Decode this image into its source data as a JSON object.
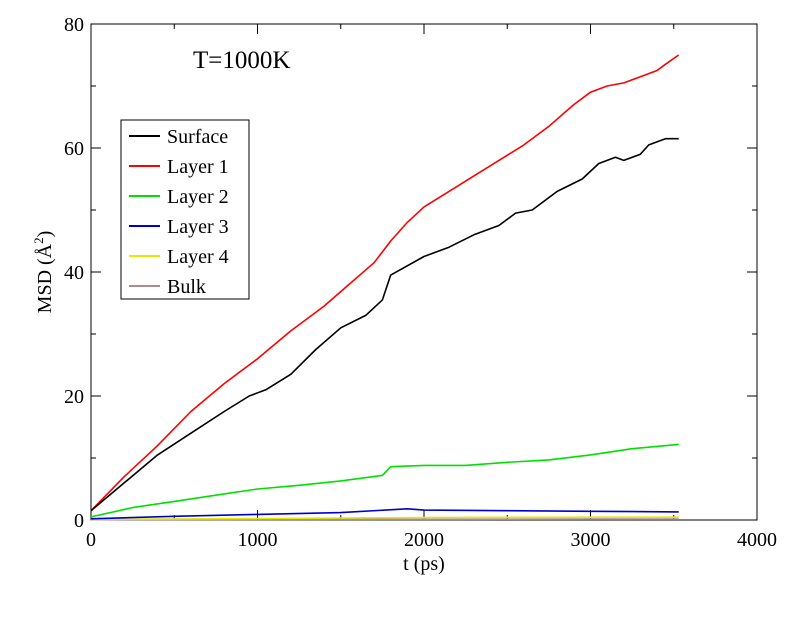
{
  "chart_data": {
    "type": "line",
    "annotation": "T=1000K",
    "xlabel": "t (ps)",
    "ylabel_base": "MSD (",
    "ylabel_unit": "Å",
    "ylabel_sup": "2",
    "ylabel_close": ")",
    "xlim": [
      0,
      4000
    ],
    "ylim": [
      0,
      80
    ],
    "xticks": [
      "0",
      "1000",
      "2000",
      "3000",
      "4000"
    ],
    "yticks": [
      "0",
      "20",
      "40",
      "60",
      "80"
    ],
    "xtick_values": [
      0,
      1000,
      2000,
      3000,
      4000
    ],
    "ytick_values": [
      0,
      20,
      40,
      60,
      80
    ],
    "grid": false,
    "legend_position": "upper-left",
    "series": [
      {
        "name": "Surface",
        "color": "#000000",
        "x": [
          0,
          200,
          400,
          600,
          800,
          950,
          1050,
          1200,
          1350,
          1500,
          1650,
          1750,
          1800,
          1900,
          2000,
          2150,
          2300,
          2450,
          2550,
          2650,
          2800,
          2950,
          3050,
          3150,
          3200,
          3300,
          3350,
          3450,
          3530
        ],
        "y": [
          1.5,
          6,
          10.5,
          14,
          17.5,
          20,
          21,
          23.5,
          27.5,
          31,
          33,
          35.5,
          39.5,
          41,
          42.5,
          44,
          46,
          47.5,
          49.5,
          50,
          53,
          55,
          57.5,
          58.5,
          58,
          59,
          60.5,
          61.5,
          61.5
        ]
      },
      {
        "name": "Layer 1",
        "color": "#ff0000",
        "x": [
          0,
          200,
          400,
          600,
          800,
          1000,
          1200,
          1400,
          1550,
          1700,
          1800,
          1900,
          2000,
          2150,
          2300,
          2450,
          2600,
          2750,
          2900,
          3000,
          3100,
          3200,
          3300,
          3400,
          3450,
          3530
        ],
        "y": [
          1.5,
          7,
          12,
          17.5,
          22,
          26,
          30.5,
          34.5,
          38,
          41.5,
          45,
          48,
          50.5,
          53,
          55.5,
          58,
          60.5,
          63.5,
          67,
          69,
          70,
          70.5,
          71.5,
          72.5,
          73.5,
          75
        ]
      },
      {
        "name": "Layer 2",
        "color": "#00e000",
        "x": [
          0,
          250,
          500,
          750,
          1000,
          1250,
          1500,
          1750,
          1800,
          2000,
          2250,
          2500,
          2750,
          3000,
          3250,
          3530
        ],
        "y": [
          0.5,
          2,
          3,
          4,
          5,
          5.6,
          6.3,
          7.2,
          8.6,
          8.8,
          8.8,
          9.3,
          9.7,
          10.5,
          11.5,
          12.2
        ]
      },
      {
        "name": "Layer 3",
        "color": "#0000cc",
        "x": [
          0,
          500,
          1000,
          1500,
          1900,
          2000,
          2500,
          3000,
          3530
        ],
        "y": [
          0.2,
          0.6,
          0.9,
          1.2,
          1.8,
          1.6,
          1.5,
          1.4,
          1.3
        ]
      },
      {
        "name": "Layer 4",
        "color": "#e8e800",
        "x": [
          0,
          1000,
          2000,
          3000,
          3530
        ],
        "y": [
          0.1,
          0.25,
          0.4,
          0.45,
          0.45
        ]
      },
      {
        "name": "Bulk",
        "color": "#b08b8b",
        "x": [
          0,
          1000,
          2000,
          3000,
          3530
        ],
        "y": [
          0.05,
          0.1,
          0.12,
          0.15,
          0.15
        ]
      }
    ]
  }
}
